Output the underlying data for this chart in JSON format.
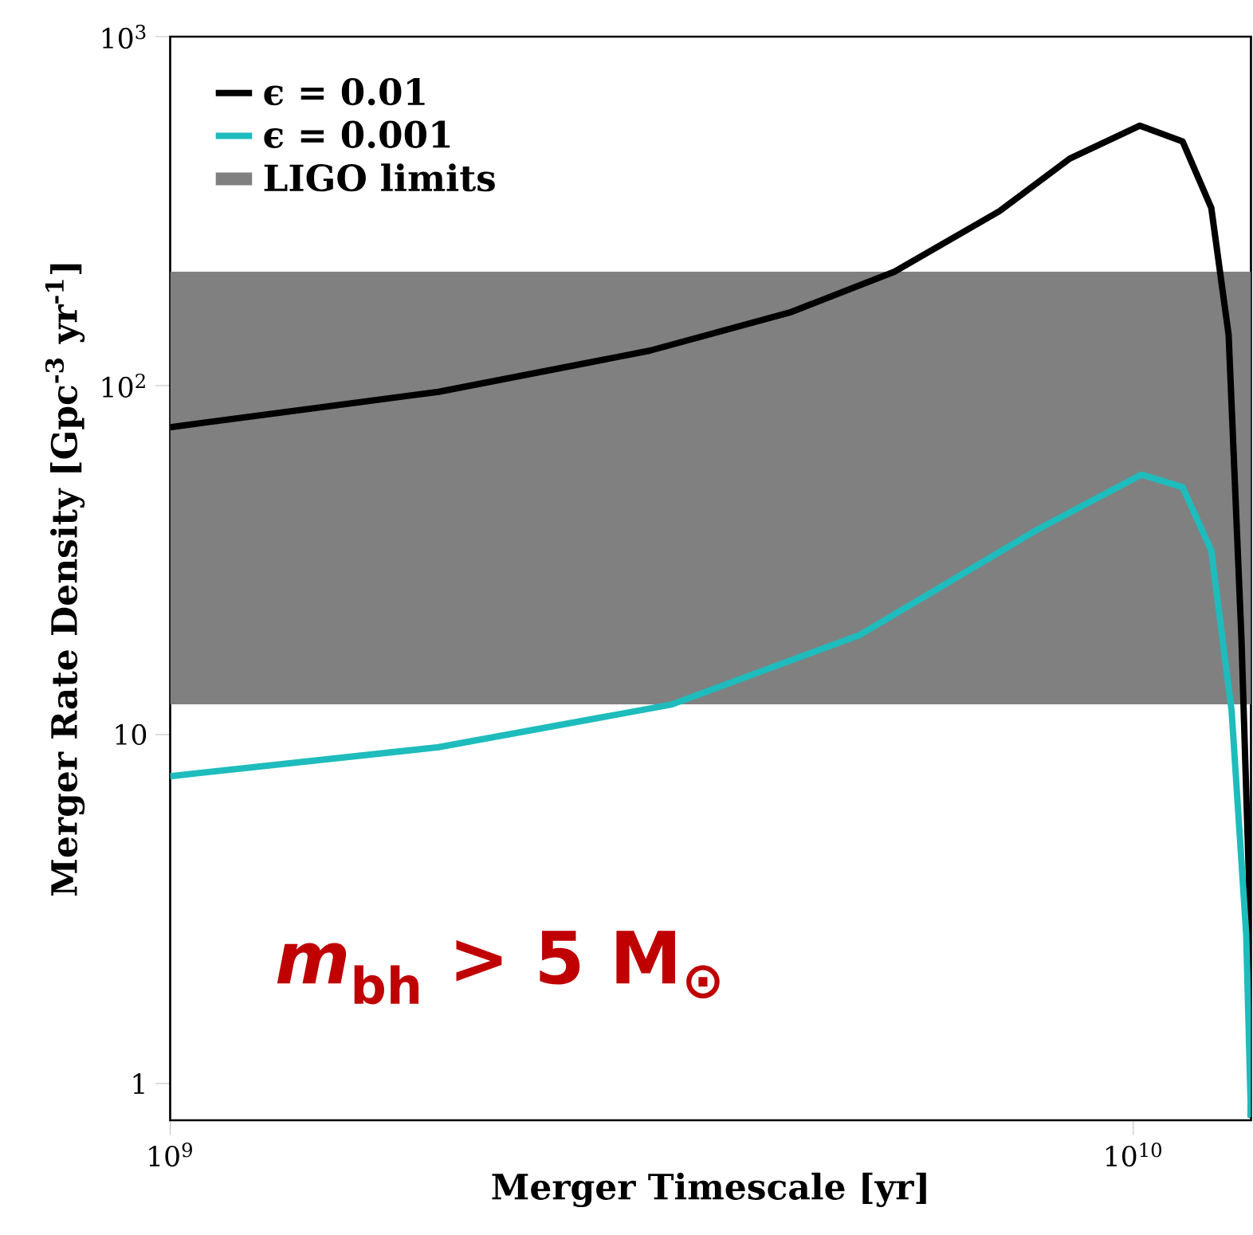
{
  "chart_data": {
    "type": "line",
    "xlabel": "Merger Timescale [yr]",
    "ylabel": "Merger Rate Density [Gpc$^{-3}$ yr$^{-1}$]",
    "log": "xy",
    "xlim": [
      1000000000.0,
      13250000000.0
    ],
    "ylim": [
      0.785,
      1000
    ],
    "xticks": [
      {
        "value": 1000000000.0,
        "label": "10$^{9}$"
      },
      {
        "value": 10000000000.0,
        "label": "10$^{10}$"
      }
    ],
    "yticks": [
      1,
      10,
      {
        "value": 100,
        "label": "10$^{2}$"
      },
      {
        "value": 1000,
        "label": "10$^{3}$"
      }
    ],
    "legend": "top left",
    "grid": false,
    "marker": "none",
    "line_style": "solid",
    "series": [
      {
        "name": "ϵ = 0.01",
        "color": "#000000",
        "x": [
          1000000000.0,
          1900000000.0,
          3150000000.0,
          4400000000.0,
          5650000000.0,
          7260000000.0,
          8590000000.0,
          10160000000.0,
          11250000000.0,
          12050000000.0,
          12560000000.0,
          12950000000.0,
          13180000000.0,
          13250000000.0
        ],
        "values": [
          76,
          96,
          126,
          162,
          212,
          316,
          447,
          556,
          501,
          323,
          140,
          19,
          4,
          0.8
        ]
      },
      {
        "name": "ϵ = 0.001",
        "color": "#1ebcbc",
        "x": [
          1000000000.0,
          1900000000.0,
          3320000000.0,
          5200000000.0,
          7930000000.0,
          10200000000.0,
          11250000000.0,
          12050000000.0,
          12650000000.0,
          13100000000.0,
          13250000000.0
        ],
        "values": [
          7.6,
          9.2,
          12.2,
          19.3,
          38.5,
          55.6,
          51.2,
          33.7,
          11.7,
          2.67,
          0.8
        ]
      }
    ],
    "bands": [
      {
        "axis": "y",
        "from": 12.2,
        "to": 212,
        "label": "LIGO limits",
        "color": "#808080"
      }
    ],
    "annotations": [
      "*m*$_{bh}$ > 5 M$_{⊙}$"
    ]
  }
}
